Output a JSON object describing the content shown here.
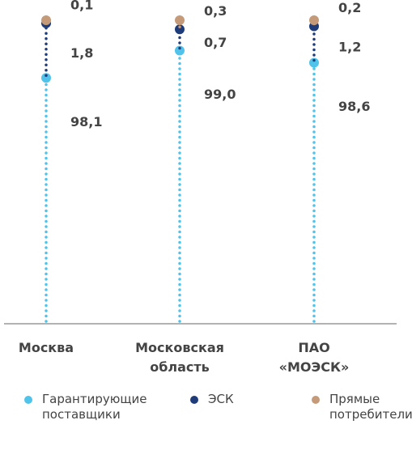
{
  "chart_data": {
    "type": "dot-stack",
    "categories": [
      "Москва",
      "Московская область",
      "ПАО «МОЭСК»"
    ],
    "series": [
      {
        "name": "Гарантирующие поставщики",
        "color": "#4fc3ea",
        "values": [
          98.1,
          99.0,
          98.6
        ],
        "value_labels": [
          "98,1",
          "99,0",
          "98,6"
        ]
      },
      {
        "name": "ЭСК",
        "color": "#1f3c7a",
        "values": [
          1.8,
          0.7,
          1.2
        ],
        "value_labels": [
          "1,8",
          "0,7",
          "1,2"
        ]
      },
      {
        "name": "Прямые потребители",
        "color": "#c49a78",
        "values": [
          0.1,
          0.3,
          0.2
        ],
        "value_labels": [
          "0,1",
          "0,3",
          "0,2"
        ]
      }
    ]
  }
}
